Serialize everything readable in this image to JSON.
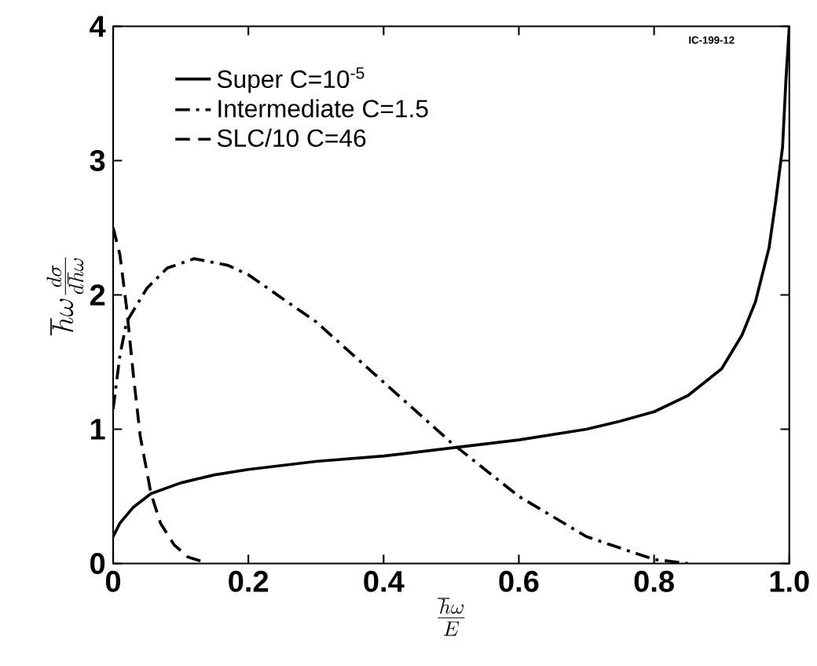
{
  "chart_data": {
    "type": "line",
    "xlabel": "\\frac{\\hbar\\omega}{E}",
    "ylabel": "\\hbar\\omega\\frac{d\\sigma}{d\\hbar\\omega}",
    "annotations": [
      "IC-199-12"
    ],
    "xlim": [
      0,
      1
    ],
    "ylim": [
      0,
      4
    ],
    "xticks": [
      0,
      0.2,
      0.4,
      0.6,
      0.8,
      {
        "value": 1,
        "label": "1.0"
      }
    ],
    "yticks": [
      0,
      1,
      2,
      3,
      4
    ],
    "grid": false,
    "legend": "top left",
    "marker": "none",
    "series": [
      {
        "name": "Super C=10$^{-5}$",
        "color": "#000000",
        "line_style": "solid",
        "x": [
          0,
          0.01,
          0.03,
          0.056,
          0.1,
          0.15,
          0.2,
          0.3,
          0.4,
          0.5,
          0.6,
          0.7,
          0.75,
          0.8,
          0.85,
          0.9,
          0.93,
          0.95,
          0.97,
          0.98,
          0.99,
          0.995,
          1.0
        ],
        "values": [
          0.2,
          0.3,
          0.42,
          0.52,
          0.6,
          0.66,
          0.7,
          0.76,
          0.8,
          0.86,
          0.92,
          1.0,
          1.06,
          1.13,
          1.25,
          1.45,
          1.7,
          1.95,
          2.35,
          2.7,
          3.1,
          3.6,
          4.0
        ]
      },
      {
        "name": "Intermediate C=1.5",
        "color": "#000000",
        "line_style": "dashdot",
        "x": [
          0,
          0.01,
          0.02,
          0.05,
          0.08,
          0.12,
          0.17,
          0.2,
          0.3,
          0.4,
          0.5,
          0.6,
          0.7,
          0.8,
          0.85
        ],
        "values": [
          1.15,
          1.55,
          1.8,
          2.05,
          2.2,
          2.27,
          2.22,
          2.15,
          1.8,
          1.35,
          0.9,
          0.5,
          0.2,
          0.03,
          0
        ]
      },
      {
        "name": "SLC/10 C=46",
        "color": "#000000",
        "line_style": "dashed",
        "x": [
          0,
          0.01,
          0.02,
          0.03,
          0.04,
          0.056,
          0.07,
          0.09,
          0.11,
          0.14
        ],
        "values": [
          2.5,
          2.3,
          1.9,
          1.4,
          0.95,
          0.52,
          0.3,
          0.14,
          0.05,
          0
        ]
      }
    ]
  }
}
